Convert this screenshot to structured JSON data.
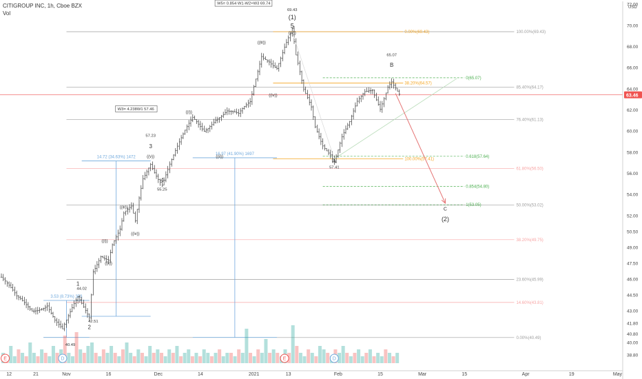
{
  "header": {
    "symbol_line": "CITIGROUP INC, 1h, Cboe BZX",
    "vol_label": "Vol",
    "currency": "USD"
  },
  "colors": {
    "up": "#26a69a",
    "down": "#ef5350",
    "bar": "#333333",
    "fib_orange": "#f5a623",
    "fib_green": "#4caf50",
    "fib_red": "#f8a5a5",
    "fib_gray": "#9e9e9e",
    "measure_blue": "#6fa8dc",
    "price_line": "#ef5350",
    "arrow": "#e57373"
  },
  "chart_data": {
    "type": "candlestick",
    "title": "CITIGROUP INC, 1h, Cboe BZX",
    "ylim": [
      38.0,
      72.3
    ],
    "xlim": [
      0,
      162
    ],
    "y_ticks": [
      38.8,
      40.0,
      40.8,
      41.8,
      43.0,
      44.5,
      46.0,
      47.5,
      49.0,
      50.5,
      52.0,
      54.0,
      56.0,
      58.0,
      60.0,
      62.0,
      64.0,
      66.0,
      68.0,
      70.0,
      72.0
    ],
    "y_tick_labels": [
      "38.80",
      "40.00",
      "40.80",
      "41.80",
      "43.00",
      "44.50",
      "46.00",
      "47.50",
      "49.00",
      "50.50",
      "52.00",
      "54.00",
      "56.00",
      "58.00",
      "60.00",
      "62.00",
      "64.00",
      "66.00",
      "68.00",
      "70.00",
      "72.00"
    ],
    "x_ticks": [
      {
        "label": "12",
        "x": 2
      },
      {
        "label": "21",
        "x": 9
      },
      {
        "label": "Nov",
        "x": 17
      },
      {
        "label": "16",
        "x": 28
      },
      {
        "label": "Dec",
        "x": 41
      },
      {
        "label": "14",
        "x": 52
      },
      {
        "label": "2021",
        "x": 66
      },
      {
        "label": "13",
        "x": 75
      },
      {
        "label": "Feb",
        "x": 88
      },
      {
        "label": "15",
        "x": 99
      },
      {
        "label": "Mar",
        "x": 110
      },
      {
        "label": "15",
        "x": 121
      },
      {
        "label": "Apr",
        "x": 137
      },
      {
        "label": "19",
        "x": 149
      },
      {
        "label": "May",
        "x": 161
      }
    ],
    "current_price": 63.46,
    "current_price_label": "63.46",
    "wave_path": [
      {
        "x": 0,
        "y": 46.2
      },
      {
        "x": 4,
        "y": 44.0
      },
      {
        "x": 8,
        "y": 43.1
      },
      {
        "x": 12,
        "y": 43.9
      },
      {
        "x": 14,
        "y": 42.3
      },
      {
        "x": 16,
        "y": 41.1
      },
      {
        "x": 18,
        "y": 42.5
      },
      {
        "x": 20,
        "y": 44.0
      },
      {
        "x": 22,
        "y": 43.0
      },
      {
        "x": 23,
        "y": 42.5
      },
      {
        "x": 24,
        "y": 47.0
      },
      {
        "x": 26,
        "y": 48.6
      },
      {
        "x": 28,
        "y": 48.1
      },
      {
        "x": 29,
        "y": 49.4
      },
      {
        "x": 31,
        "y": 50.5
      },
      {
        "x": 32,
        "y": 51.9
      },
      {
        "x": 34,
        "y": 52.5
      },
      {
        "x": 35,
        "y": 51.2
      },
      {
        "x": 36,
        "y": 53.5
      },
      {
        "x": 37,
        "y": 55.5
      },
      {
        "x": 39,
        "y": 57.2
      },
      {
        "x": 40,
        "y": 56.5
      },
      {
        "x": 42,
        "y": 55.3
      },
      {
        "x": 44,
        "y": 57.0
      },
      {
        "x": 47,
        "y": 59.0
      },
      {
        "x": 50,
        "y": 61.0
      },
      {
        "x": 53,
        "y": 60.2
      },
      {
        "x": 56,
        "y": 61.5
      },
      {
        "x": 59,
        "y": 62.0
      },
      {
        "x": 62,
        "y": 61.3
      },
      {
        "x": 65,
        "y": 62.5
      },
      {
        "x": 68,
        "y": 67.3
      },
      {
        "x": 70,
        "y": 67.0
      },
      {
        "x": 72,
        "y": 66.3
      },
      {
        "x": 74,
        "y": 68.0
      },
      {
        "x": 76,
        "y": 69.4
      },
      {
        "x": 77,
        "y": 66.8
      },
      {
        "x": 79,
        "y": 63.6
      },
      {
        "x": 81,
        "y": 62.2
      },
      {
        "x": 82,
        "y": 60.5
      },
      {
        "x": 84,
        "y": 59.0
      },
      {
        "x": 86,
        "y": 58.2
      },
      {
        "x": 87,
        "y": 57.4
      },
      {
        "x": 89,
        "y": 59.5
      },
      {
        "x": 91,
        "y": 60.6
      },
      {
        "x": 93,
        "y": 62.4
      },
      {
        "x": 95,
        "y": 63.5
      },
      {
        "x": 97,
        "y": 64.0
      },
      {
        "x": 99,
        "y": 62.5
      },
      {
        "x": 101,
        "y": 64.6
      },
      {
        "x": 102,
        "y": 65.0
      },
      {
        "x": 104,
        "y": 63.5
      }
    ],
    "volume": [
      3,
      2,
      5,
      2,
      4,
      3,
      2,
      6,
      3,
      2,
      4,
      3,
      2,
      5,
      3,
      4,
      8,
      3,
      2,
      9,
      4,
      3,
      5,
      6,
      3,
      2,
      4,
      3,
      5,
      3,
      2,
      4,
      6,
      3,
      2,
      4,
      3,
      2,
      5,
      3,
      4,
      3,
      2,
      4,
      3,
      5,
      2,
      3,
      4,
      2,
      3,
      2,
      4,
      3,
      2,
      3,
      4,
      2,
      3,
      3,
      2,
      4,
      3,
      10,
      3,
      2,
      4,
      3,
      7,
      3,
      4,
      3,
      2,
      4,
      3,
      11,
      5,
      3,
      2,
      4,
      3,
      2,
      5,
      4,
      3,
      2,
      4,
      3,
      5,
      3,
      2,
      3,
      4,
      2,
      3,
      4,
      2,
      3,
      2,
      4,
      3,
      2,
      3
    ],
    "volume_max": 12,
    "event_markers": [
      {
        "label": "E",
        "x": 1
      },
      {
        "label": "D",
        "x": 16
      },
      {
        "label": "E",
        "x": 74
      },
      {
        "label": "D",
        "x": 87
      }
    ]
  },
  "fib_levels": [
    {
      "price": 69.43,
      "label": "100.00%(69.43)",
      "color": "gray",
      "x0": 17,
      "x1": 134
    },
    {
      "price": 64.17,
      "label": "85.40%(64.17)",
      "color": "gray",
      "x0": 17,
      "x1": 134
    },
    {
      "price": 61.13,
      "label": "76.40%(61.13)",
      "color": "gray",
      "x0": 17,
      "x1": 134
    },
    {
      "price": 56.5,
      "label": "61.80%(56.50)",
      "color": "red",
      "x0": 17,
      "x1": 134
    },
    {
      "price": 53.02,
      "label": "50.00%(53.02)",
      "color": "gray",
      "x0": 17,
      "x1": 134
    },
    {
      "price": 49.75,
      "label": "38.20%(49.75)",
      "color": "red",
      "x0": 17,
      "x1": 134
    },
    {
      "price": 45.99,
      "label": "23.60%(45.99)",
      "color": "gray",
      "x0": 17,
      "x1": 134
    },
    {
      "price": 43.81,
      "label": "14.60%(43.81)",
      "color": "red",
      "x0": 17,
      "x1": 134
    },
    {
      "price": 40.49,
      "label": "0.00%(40.49)",
      "color": "gray",
      "x0": 11,
      "x1": 134
    }
  ],
  "retrace_levels": [
    {
      "price": 69.43,
      "label": "0.00%(69.43)",
      "x0": 71,
      "x1": 105
    },
    {
      "price": 64.57,
      "label": "38.20%(64.57)",
      "x0": 71,
      "x1": 105
    },
    {
      "price": 57.41,
      "label": "100.00%(57.41)",
      "x0": 71,
      "x1": 105
    }
  ],
  "projection_levels": [
    {
      "price": 65.07,
      "label": "0(65.07)",
      "x0": 84,
      "x1": 121
    },
    {
      "price": 57.64,
      "label": "0.618(57.64)",
      "x0": 84,
      "x1": 121
    },
    {
      "price": 54.8,
      "label": "0.854(54.80)",
      "x0": 84,
      "x1": 121
    },
    {
      "price": 53.05,
      "label": "1(53.05)",
      "x0": 84,
      "x1": 121
    }
  ],
  "price_notes": [
    {
      "text": "69.43",
      "x": 76,
      "y": 71.4
    },
    {
      "text": "57.23",
      "x": 39,
      "y": 59.5
    },
    {
      "text": "55.25",
      "x": 42,
      "y": 54.4
    },
    {
      "text": "57.41",
      "x": 87,
      "y": 56.5
    },
    {
      "text": "65.07",
      "x": 102,
      "y": 67.1
    },
    {
      "text": "44.02",
      "x": 21,
      "y": 45.0
    },
    {
      "text": "42.51",
      "x": 24,
      "y": 41.9
    },
    {
      "text": "40.49",
      "x": 18,
      "y": 39.7
    }
  ],
  "wave_labels": [
    {
      "text": "(1)",
      "x": 76,
      "y": 70.6,
      "size": 9
    },
    {
      "text": "5",
      "x": 76,
      "y": 69.8,
      "size": 9
    },
    {
      "text": "((v))",
      "x": 76,
      "y": 69.2,
      "size": 6
    },
    {
      "text": "((iii))",
      "x": 68,
      "y": 68.3,
      "size": 6
    },
    {
      "text": "((iv))",
      "x": 71,
      "y": 63.3,
      "size": 6
    },
    {
      "text": "((i))",
      "x": 49,
      "y": 61.7,
      "size": 6
    },
    {
      "text": "((ii))",
      "x": 57,
      "y": 57.5,
      "size": 6
    },
    {
      "text": "3",
      "x": 39,
      "y": 58.4,
      "size": 8
    },
    {
      "text": "((v))",
      "x": 39,
      "y": 57.5,
      "size": 6
    },
    {
      "text": "4",
      "x": 42,
      "y": 55.2,
      "size": 8
    },
    {
      "text": "((iii))",
      "x": 32,
      "y": 52.7,
      "size": 6
    },
    {
      "text": "((iv))",
      "x": 35,
      "y": 50.2,
      "size": 6
    },
    {
      "text": "((i))",
      "x": 27,
      "y": 49.5,
      "size": 6
    },
    {
      "text": "((ii))",
      "x": 28,
      "y": 47.4,
      "size": 6
    },
    {
      "text": "1",
      "x": 20,
      "y": 45.4,
      "size": 8
    },
    {
      "text": "2",
      "x": 23,
      "y": 41.3,
      "size": 8
    },
    {
      "text": "A",
      "x": 87,
      "y": 57.0,
      "size": 8
    },
    {
      "text": "B",
      "x": 102,
      "y": 66.1,
      "size": 8
    },
    {
      "text": "C",
      "x": 116,
      "y": 52.5,
      "size": 7
    },
    {
      "text": "(2)",
      "x": 116,
      "y": 51.5,
      "size": 9
    }
  ],
  "info_boxes": [
    {
      "text": "W5= 0.854 W1-W2+W3 69.74",
      "x": 56,
      "y": 72.0
    },
    {
      "text": "W3= 4.238W1 57.46",
      "x": 30,
      "y": 62.0
    }
  ],
  "measures": [
    {
      "text": "3.53 (8.73%) 353",
      "x0": 11,
      "x1": 23,
      "y_top": 44.0,
      "y_bot": 40.5
    },
    {
      "text": "14.72 (34.63%) 1472",
      "x0": 21,
      "x1": 39,
      "y_top": 57.2,
      "y_bot": 42.5
    },
    {
      "text": "16.97 (41.90%) 1697",
      "x0": 50,
      "x1": 72,
      "y_top": 57.5,
      "y_bot": 40.5
    }
  ],
  "projection_arrow": {
    "x0": 103,
    "y0": 63.6,
    "x1": 116,
    "y1": 53.2
  },
  "channel_line": {
    "x0": 87,
    "y0": 57.4,
    "x1": 119,
    "y1": 65.0
  }
}
